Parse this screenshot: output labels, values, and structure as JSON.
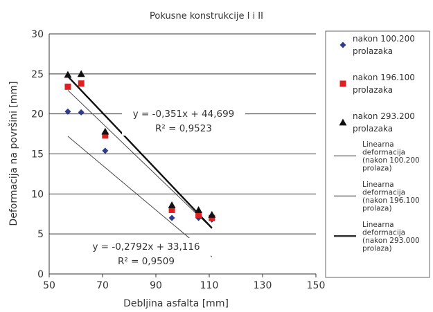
{
  "chart_data": {
    "type": "scatter",
    "title": "Pokusne konstrukcije I i II",
    "xlabel": "Debljina asfalta [mm]",
    "ylabel": "Deformacija na površini [mm]",
    "xlim": [
      50,
      150
    ],
    "ylim": [
      0,
      30
    ],
    "xticks": [
      50,
      70,
      90,
      110,
      130,
      150
    ],
    "yticks": [
      0,
      5,
      10,
      15,
      20,
      25,
      30
    ],
    "grid": "horizontal",
    "legend_position": "right",
    "series": [
      {
        "name": "nakon 100.200 prolazaka",
        "marker": "diamond",
        "color": "#2e3a8c",
        "x": [
          57,
          62,
          71,
          96,
          106,
          111
        ],
        "y": [
          20.3,
          20.2,
          15.4,
          7.0,
          7.0,
          6.8
        ]
      },
      {
        "name": "nakon 196.100 prolazaka",
        "marker": "square",
        "color": "#e02020",
        "x": [
          57,
          62,
          71,
          96,
          106,
          111
        ],
        "y": [
          23.4,
          23.8,
          17.3,
          8.0,
          7.4,
          7.0
        ]
      },
      {
        "name": "nakon 293.200 prolazaka",
        "marker": "triangle",
        "color": "#111111",
        "x": [
          57,
          62,
          71,
          96,
          106,
          111
        ],
        "y": [
          24.9,
          25.0,
          17.8,
          8.6,
          8.0,
          7.4
        ]
      }
    ],
    "trendlines": [
      {
        "name": "Linearna deformacija (nakon 100.200 prolaza)",
        "slope": -0.2792,
        "intercept": 33.116,
        "x_range": [
          57,
          111
        ],
        "color": "#444444",
        "weight": "thin"
      },
      {
        "name": "Linearna deformacija (nakon 196.100 prolaza)",
        "slope": -0.32,
        "intercept": 41.2,
        "x_range": [
          57,
          111
        ],
        "color": "#444444",
        "weight": "thin"
      },
      {
        "name": "Linearna deformacija (nakon 293.000 prolaza)",
        "slope": -0.351,
        "intercept": 44.699,
        "x_range": [
          57,
          111
        ],
        "color": "#111111",
        "weight": "thick"
      }
    ],
    "annotations": [
      {
        "lines": [
          "y = -0,351x + 44,699",
          "R² = 0,9523"
        ]
      },
      {
        "lines": [
          "y = -0,2792x + 33,116",
          "R² = 0,9509"
        ]
      }
    ],
    "legend": [
      {
        "lines": [
          "nakon 100.200",
          "prolazaka"
        ],
        "symbol": "diamond"
      },
      {
        "lines": [
          "nakon 196.100",
          "prolazaka"
        ],
        "symbol": "square"
      },
      {
        "lines": [
          "nakon 293.200",
          "prolazaka"
        ],
        "symbol": "triangle"
      },
      {
        "lines": [
          "Linearna",
          "deformacija",
          "(nakon 100.200",
          "prolaza)"
        ],
        "symbol": "line-thin"
      },
      {
        "lines": [
          "Linearna",
          "deformacija",
          "(nakon 196.100",
          "prolaza)"
        ],
        "symbol": "line-thin"
      },
      {
        "lines": [
          "Linearna",
          "deformacija",
          "(nakon 293.000",
          "prolaza)"
        ],
        "symbol": "line-thick"
      }
    ]
  }
}
